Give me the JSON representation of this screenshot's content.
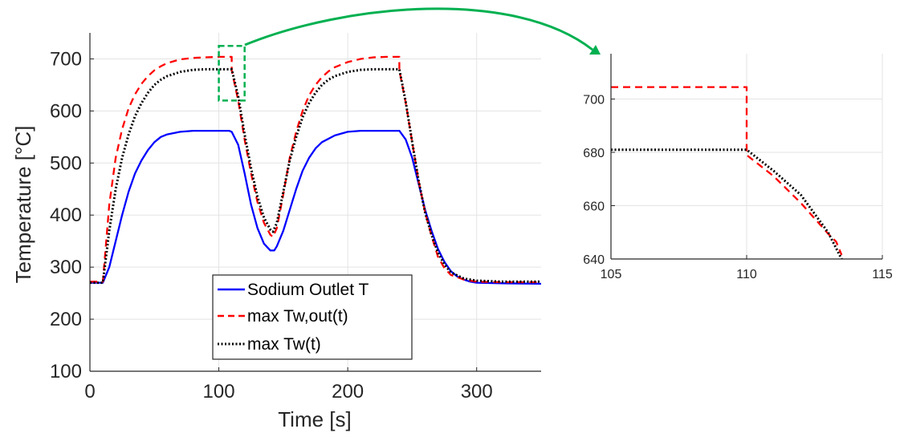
{
  "chart_data": [
    {
      "type": "line",
      "xlabel": "Time [s]",
      "ylabel": "Temperature [°C]",
      "xlim": [
        0,
        350
      ],
      "ylim": [
        100,
        750
      ],
      "xticks": [
        "0",
        "100",
        "200",
        "300"
      ],
      "yticks": [
        "100",
        "200",
        "300",
        "400",
        "500",
        "600",
        "700"
      ],
      "grid": true,
      "legend_position": "bottom-center",
      "zoom_box": {
        "x_range": [
          100,
          120
        ],
        "y_range": [
          620,
          725
        ]
      },
      "series": [
        {
          "name": "Sodium Outlet T",
          "color": "#0000ff",
          "style": "solid",
          "points": [
            [
              0,
              270
            ],
            [
              10,
              270
            ],
            [
              15,
              300
            ],
            [
              20,
              350
            ],
            [
              25,
              400
            ],
            [
              30,
              445
            ],
            [
              35,
              480
            ],
            [
              40,
              505
            ],
            [
              45,
              525
            ],
            [
              50,
              540
            ],
            [
              55,
              550
            ],
            [
              60,
              555
            ],
            [
              70,
              560
            ],
            [
              80,
              562
            ],
            [
              90,
              562
            ],
            [
              100,
              562
            ],
            [
              108,
              562
            ],
            [
              110,
              560
            ],
            [
              115,
              535
            ],
            [
              120,
              480
            ],
            [
              125,
              420
            ],
            [
              130,
              375
            ],
            [
              135,
              345
            ],
            [
              140,
              332
            ],
            [
              143,
              332
            ],
            [
              145,
              340
            ],
            [
              150,
              370
            ],
            [
              155,
              410
            ],
            [
              160,
              450
            ],
            [
              165,
              485
            ],
            [
              170,
              510
            ],
            [
              175,
              528
            ],
            [
              180,
              540
            ],
            [
              190,
              553
            ],
            [
              200,
              560
            ],
            [
              210,
              562
            ],
            [
              220,
              562
            ],
            [
              230,
              562
            ],
            [
              240,
              562
            ],
            [
              245,
              545
            ],
            [
              250,
              510
            ],
            [
              255,
              460
            ],
            [
              260,
              410
            ],
            [
              265,
              370
            ],
            [
              270,
              335
            ],
            [
              275,
              310
            ],
            [
              280,
              292
            ],
            [
              285,
              282
            ],
            [
              290,
              276
            ],
            [
              295,
              272
            ],
            [
              300,
              270
            ],
            [
              320,
              269
            ],
            [
              350,
              268
            ]
          ]
        },
        {
          "name": "max Tw,out(t)",
          "color": "#ff0000",
          "style": "dashed",
          "points": [
            [
              0,
              272
            ],
            [
              10,
              272
            ],
            [
              15,
              420
            ],
            [
              20,
              510
            ],
            [
              25,
              565
            ],
            [
              30,
              605
            ],
            [
              35,
              632
            ],
            [
              40,
              652
            ],
            [
              45,
              667
            ],
            [
              50,
              678
            ],
            [
              55,
              686
            ],
            [
              60,
              692
            ],
            [
              70,
              699
            ],
            [
              80,
              702
            ],
            [
              90,
              703
            ],
            [
              100,
              704
            ],
            [
              110,
              704
            ],
            [
              110,
              678
            ],
            [
              115,
              620
            ],
            [
              120,
              545
            ],
            [
              125,
              480
            ],
            [
              130,
              425
            ],
            [
              135,
              385
            ],
            [
              140,
              362
            ],
            [
              142,
              358
            ],
            [
              145,
              375
            ],
            [
              150,
              440
            ],
            [
              155,
              510
            ],
            [
              160,
              560
            ],
            [
              165,
              600
            ],
            [
              170,
              630
            ],
            [
              175,
              650
            ],
            [
              180,
              665
            ],
            [
              185,
              676
            ],
            [
              190,
              684
            ],
            [
              200,
              694
            ],
            [
              210,
              700
            ],
            [
              220,
              703
            ],
            [
              230,
              704
            ],
            [
              240,
              704
            ],
            [
              240,
              678
            ],
            [
              245,
              615
            ],
            [
              250,
              540
            ],
            [
              255,
              465
            ],
            [
              260,
              405
            ],
            [
              265,
              360
            ],
            [
              270,
              320
            ],
            [
              275,
              298
            ],
            [
              280,
              285
            ],
            [
              290,
              276
            ],
            [
              300,
              272
            ],
            [
              320,
              271
            ],
            [
              350,
              271
            ]
          ]
        },
        {
          "name": "max Tw(t)",
          "color": "#000000",
          "style": "dotted",
          "points": [
            [
              0,
              270
            ],
            [
              10,
              270
            ],
            [
              15,
              370
            ],
            [
              20,
              450
            ],
            [
              25,
              510
            ],
            [
              30,
              555
            ],
            [
              35,
              590
            ],
            [
              40,
              615
            ],
            [
              45,
              635
            ],
            [
              50,
              650
            ],
            [
              55,
              660
            ],
            [
              60,
              667
            ],
            [
              70,
              675
            ],
            [
              80,
              679
            ],
            [
              90,
              680
            ],
            [
              100,
              680
            ],
            [
              110,
              680
            ],
            [
              115,
              628
            ],
            [
              120,
              555
            ],
            [
              125,
              490
            ],
            [
              130,
              435
            ],
            [
              135,
              395
            ],
            [
              140,
              372
            ],
            [
              142,
              368
            ],
            [
              145,
              385
            ],
            [
              150,
              445
            ],
            [
              155,
              505
            ],
            [
              160,
              550
            ],
            [
              165,
              588
            ],
            [
              170,
              615
            ],
            [
              175,
              635
            ],
            [
              180,
              650
            ],
            [
              185,
              660
            ],
            [
              190,
              667
            ],
            [
              200,
              675
            ],
            [
              210,
              679
            ],
            [
              220,
              680
            ],
            [
              230,
              680
            ],
            [
              240,
              680
            ],
            [
              245,
              617
            ],
            [
              250,
              540
            ],
            [
              255,
              465
            ],
            [
              260,
              405
            ],
            [
              265,
              362
            ],
            [
              270,
              328
            ],
            [
              275,
              305
            ],
            [
              280,
              290
            ],
            [
              290,
              278
            ],
            [
              300,
              274
            ],
            [
              320,
              272
            ],
            [
              350,
              272
            ]
          ]
        }
      ]
    },
    {
      "type": "line",
      "xlim": [
        105,
        115
      ],
      "ylim": [
        640,
        717
      ],
      "xticks": [
        "105",
        "110",
        "115"
      ],
      "yticks": [
        "640",
        "660",
        "680",
        "700"
      ],
      "grid": true,
      "series": [
        {
          "color": "#ff0000",
          "style": "dashed",
          "points": [
            [
              105,
              704.5
            ],
            [
              110,
              704.5
            ],
            [
              110,
              679
            ],
            [
              111,
              671
            ],
            [
              112,
              661
            ],
            [
              113,
              649.5
            ],
            [
              113.3,
              646.5
            ],
            [
              113.5,
              641.5
            ]
          ]
        },
        {
          "color": "#000000",
          "style": "dotted",
          "points": [
            [
              105,
              681
            ],
            [
              110,
              681
            ],
            [
              111,
              673
            ],
            [
              112,
              664
            ],
            [
              113,
              650
            ],
            [
              113.5,
              640
            ]
          ]
        }
      ]
    }
  ]
}
